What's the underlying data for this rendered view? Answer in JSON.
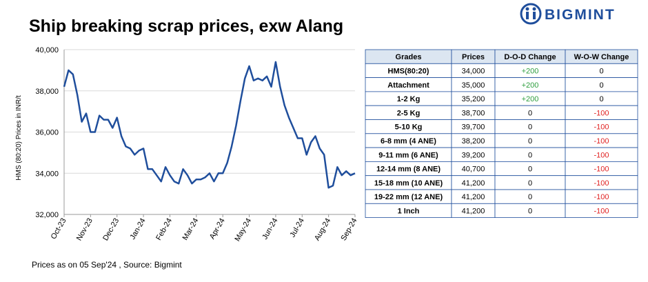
{
  "header": {
    "title": "Ship breaking scrap prices, exw Alang",
    "logo": "BIGMINT"
  },
  "chart_data": {
    "type": "line",
    "y_label": "HMS (80:20) Prices in INR/t",
    "categories": [
      "Oct-23",
      null,
      null,
      null,
      null,
      null,
      "Nov-23",
      null,
      null,
      null,
      null,
      null,
      "Dec-23",
      null,
      null,
      null,
      null,
      null,
      "Jan-24",
      null,
      null,
      null,
      null,
      null,
      "Feb-24",
      null,
      null,
      null,
      null,
      null,
      "Mar-24",
      null,
      null,
      null,
      null,
      null,
      "Apr-24",
      null,
      null,
      null,
      null,
      null,
      "May-24",
      null,
      null,
      null,
      null,
      null,
      "Jun-24",
      null,
      null,
      null,
      null,
      null,
      "Jul-24",
      null,
      null,
      null,
      null,
      null,
      "Aug-24",
      null,
      null,
      null,
      null,
      null,
      "Sep-24"
    ],
    "values": [
      38200,
      39000,
      38800,
      37800,
      36500,
      36900,
      36000,
      36000,
      36800,
      36600,
      36600,
      36200,
      36700,
      35800,
      35300,
      35200,
      34900,
      35100,
      35200,
      34200,
      34200,
      33900,
      33600,
      34300,
      33900,
      33600,
      33500,
      34200,
      33900,
      33500,
      33700,
      33700,
      33800,
      34000,
      33600,
      34000,
      34000,
      34500,
      35300,
      36300,
      37500,
      38600,
      39200,
      38500,
      38600,
      38500,
      38700,
      38200,
      39400,
      38200,
      37300,
      36700,
      36200,
      35700,
      35700,
      34900,
      35500,
      35800,
      35200,
      34900,
      33300,
      33400,
      34300,
      33900,
      34100,
      33900,
      34000
    ],
    "color": "#1f4e9c",
    "ylim": [
      32000,
      40000
    ],
    "yticks": [
      {
        "value": 32000,
        "label": "32,000"
      },
      {
        "value": 34000,
        "label": "34,000"
      },
      {
        "value": 36000,
        "label": "36,000"
      },
      {
        "value": 38000,
        "label": "38,000"
      },
      {
        "value": 40000,
        "label": "40,000"
      }
    ],
    "grid": true
  },
  "table": {
    "header": [
      "Grades",
      "Prices",
      "D-O-D Change",
      "W-O-W Change"
    ],
    "rows": [
      [
        "HMS(80:20)",
        "34,000",
        "+200",
        "0"
      ],
      [
        "Attachment",
        "35,000",
        "+200",
        "0"
      ],
      [
        "1-2 Kg",
        "35,200",
        "+200",
        "0"
      ],
      [
        "2-5 Kg",
        "38,700",
        "0",
        "-100"
      ],
      [
        "5-10 Kg",
        "39,700",
        "0",
        "-100"
      ],
      [
        "6-8 mm (4 ANE)",
        "38,200",
        "0",
        "-100"
      ],
      [
        "9-11 mm (6 ANE)",
        "39,200",
        "0",
        "-100"
      ],
      [
        "12-14 mm (8 ANE)",
        "40,700",
        "0",
        "-100"
      ],
      [
        "15-18 mm (10 ANE)",
        "41,200",
        "0",
        "-100"
      ],
      [
        "19-22 mm (12 ANE)",
        "41,200",
        "0",
        "-100"
      ],
      [
        "1 Inch",
        "41,200",
        "0",
        "-100"
      ]
    ]
  },
  "footer": "Prices as on 05 Sep'24 , Source: Bigmint"
}
